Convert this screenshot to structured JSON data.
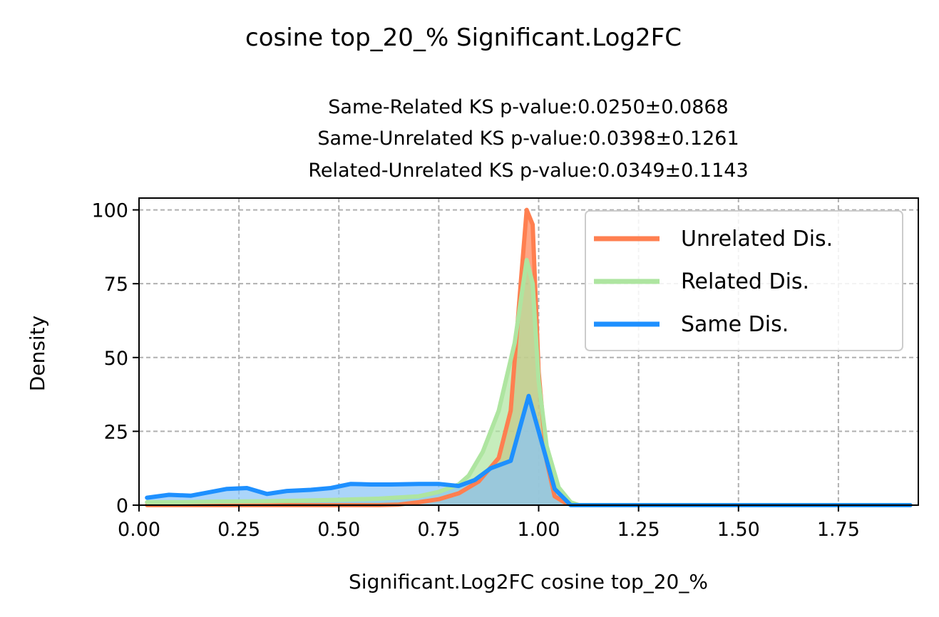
{
  "figure": {
    "suptitle": "cosine top_20_% Significant.Log2FC"
  },
  "chart_data": {
    "type": "area",
    "title_lines": [
      "Same-Related KS p-value:0.0250±0.0868",
      "Same-Unrelated KS p-value:0.0398±0.1261",
      "Related-Unrelated KS p-value:0.0349±0.1143"
    ],
    "xlabel": "Significant.Log2FC cosine top_20_%",
    "ylabel": "Density",
    "xlim": [
      0.0,
      1.95
    ],
    "ylim": [
      0,
      104
    ],
    "xticks": [
      0.0,
      0.25,
      0.5,
      0.75,
      1.0,
      1.25,
      1.5,
      1.75
    ],
    "xtick_labels": [
      "0.00",
      "0.25",
      "0.50",
      "0.75",
      "1.00",
      "1.25",
      "1.50",
      "1.75"
    ],
    "yticks": [
      0,
      25,
      50,
      75,
      100
    ],
    "ytick_labels": [
      "0",
      "25",
      "50",
      "75",
      "100"
    ],
    "grid": true,
    "legend_position": "upper right",
    "series": [
      {
        "name": "Unrelated Dis.",
        "color": "#ff7f50",
        "fill_color": "#ff7f50",
        "points": [
          [
            0.02,
            0
          ],
          [
            0.6,
            0
          ],
          [
            0.65,
            0.2
          ],
          [
            0.7,
            1
          ],
          [
            0.75,
            2
          ],
          [
            0.8,
            4
          ],
          [
            0.85,
            8
          ],
          [
            0.9,
            16
          ],
          [
            0.93,
            32
          ],
          [
            0.955,
            75
          ],
          [
            0.97,
            100
          ],
          [
            0.985,
            95
          ],
          [
            1.0,
            45
          ],
          [
            1.02,
            15
          ],
          [
            1.04,
            3
          ],
          [
            1.07,
            0.5
          ],
          [
            1.1,
            0
          ],
          [
            1.93,
            0
          ]
        ]
      },
      {
        "name": "Related Dis.",
        "color": "#aee5a0",
        "fill_color": "#aee5a0",
        "points": [
          [
            0.02,
            1
          ],
          [
            0.1,
            1
          ],
          [
            0.2,
            1.2
          ],
          [
            0.3,
            1.3
          ],
          [
            0.4,
            1.5
          ],
          [
            0.5,
            1.8
          ],
          [
            0.6,
            2.2
          ],
          [
            0.7,
            3
          ],
          [
            0.75,
            4.5
          ],
          [
            0.8,
            7
          ],
          [
            0.825,
            10
          ],
          [
            0.86,
            18
          ],
          [
            0.9,
            32
          ],
          [
            0.94,
            55
          ],
          [
            0.97,
            83
          ],
          [
            0.985,
            75
          ],
          [
            1.0,
            42
          ],
          [
            1.02,
            20
          ],
          [
            1.05,
            6
          ],
          [
            1.08,
            1
          ],
          [
            1.1,
            0
          ],
          [
            1.93,
            0
          ]
        ]
      },
      {
        "name": "Same Dis.",
        "color": "#1e90ff",
        "fill_color": "#87c3f8",
        "points": [
          [
            0.02,
            2.5
          ],
          [
            0.075,
            3.5
          ],
          [
            0.13,
            3.2
          ],
          [
            0.18,
            4.5
          ],
          [
            0.22,
            5.5
          ],
          [
            0.27,
            5.8
          ],
          [
            0.32,
            3.8
          ],
          [
            0.37,
            4.8
          ],
          [
            0.43,
            5.2
          ],
          [
            0.48,
            5.8
          ],
          [
            0.53,
            7.2
          ],
          [
            0.58,
            7
          ],
          [
            0.63,
            7
          ],
          [
            0.7,
            7.2
          ],
          [
            0.75,
            7.2
          ],
          [
            0.8,
            6.5
          ],
          [
            0.84,
            8.5
          ],
          [
            0.88,
            12.5
          ],
          [
            0.93,
            15
          ],
          [
            0.975,
            37
          ],
          [
            1.0,
            25
          ],
          [
            1.04,
            5.5
          ],
          [
            1.08,
            0
          ],
          [
            1.93,
            0
          ]
        ]
      }
    ]
  }
}
